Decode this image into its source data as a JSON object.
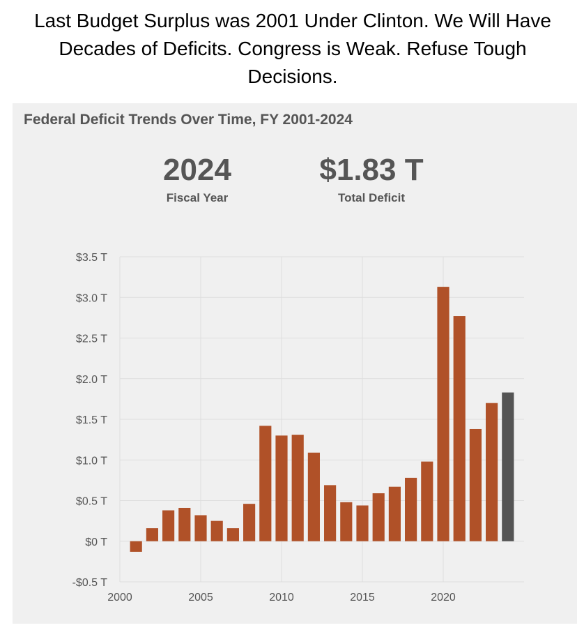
{
  "caption": "Last Budget Surplus was 2001 Under Clinton. We Will Have Decades of Deficits. Congress is Weak. Refuse Tough Decisions.",
  "card": {
    "title": "Federal Deficit Trends Over Time, FY 2001-2024",
    "kpis": [
      {
        "value": "2024",
        "label": "Fiscal Year"
      },
      {
        "value": "$1.83 T",
        "label": "Total Deficit"
      }
    ]
  },
  "colors": {
    "bar": "#b05128",
    "highlight": "#545454",
    "grid": "#dedede"
  },
  "chart_data": {
    "type": "bar",
    "title": "Federal Deficit Trends Over Time, FY 2001-2024",
    "xlabel": "",
    "ylabel": "",
    "categories": [
      2001,
      2002,
      2003,
      2004,
      2005,
      2006,
      2007,
      2008,
      2009,
      2010,
      2011,
      2012,
      2013,
      2014,
      2015,
      2016,
      2017,
      2018,
      2019,
      2020,
      2021,
      2022,
      2023,
      2024
    ],
    "values": [
      -0.13,
      0.16,
      0.38,
      0.41,
      0.32,
      0.25,
      0.16,
      0.46,
      1.42,
      1.3,
      1.31,
      1.09,
      0.69,
      0.48,
      0.44,
      0.59,
      0.67,
      0.78,
      0.98,
      3.13,
      2.77,
      1.38,
      1.7,
      1.83
    ],
    "highlight_category": 2024,
    "ylim": [
      -0.5,
      3.5
    ],
    "xlim": [
      2000,
      2025
    ],
    "y_ticks": [
      {
        "value": 3.5,
        "label": "$3.5 T"
      },
      {
        "value": 3.0,
        "label": "$3.0 T"
      },
      {
        "value": 2.5,
        "label": "$2.5 T"
      },
      {
        "value": 2.0,
        "label": "$2.0 T"
      },
      {
        "value": 1.5,
        "label": "$1.5 T"
      },
      {
        "value": 1.0,
        "label": "$1.0 T"
      },
      {
        "value": 0.5,
        "label": "$0.5 T"
      },
      {
        "value": 0,
        "label": "$0 T"
      },
      {
        "value": -0.5,
        "label": "-$0.5 T"
      }
    ],
    "x_ticks": [
      {
        "value": 2000,
        "label": "2000"
      },
      {
        "value": 2005,
        "label": "2005"
      },
      {
        "value": 2010,
        "label": "2010"
      },
      {
        "value": 2015,
        "label": "2015"
      },
      {
        "value": 2020,
        "label": "2020"
      }
    ],
    "grid": true,
    "legend": "none"
  }
}
